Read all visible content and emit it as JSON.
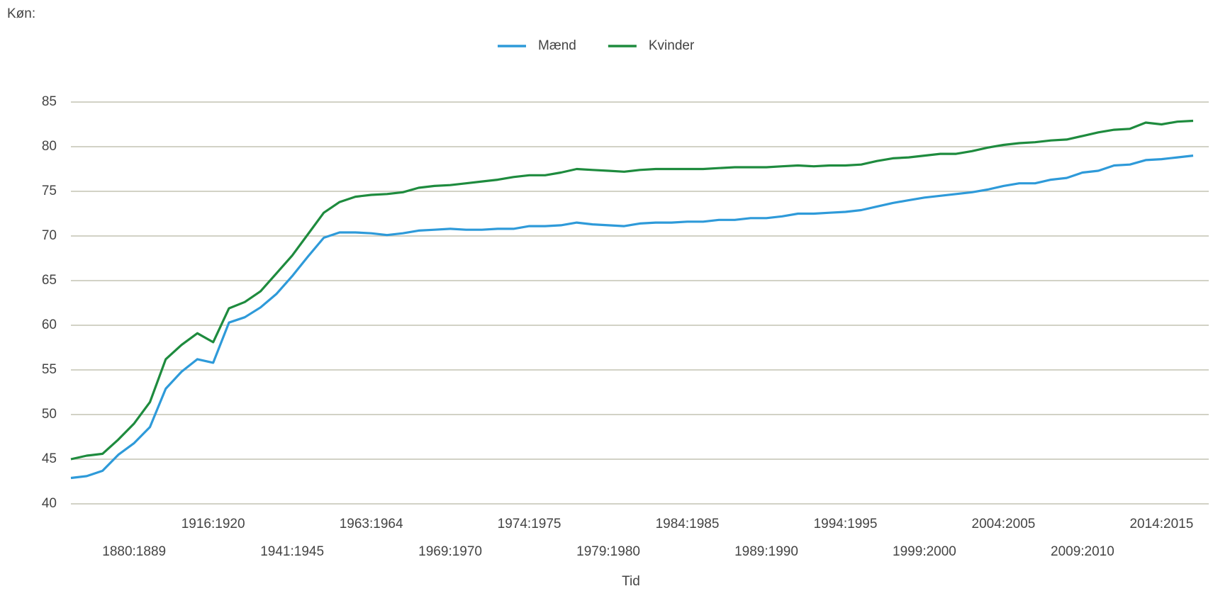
{
  "chart_data": {
    "type": "line",
    "header": "Køn:",
    "x_label": "Tid",
    "categories": [
      null,
      null,
      null,
      null,
      "1880:1889",
      null,
      null,
      null,
      null,
      "1916:1920",
      null,
      null,
      null,
      null,
      "1941:1945",
      null,
      null,
      null,
      null,
      "1963:1964",
      null,
      null,
      null,
      null,
      "1969:1970",
      null,
      null,
      null,
      null,
      "1974:1975",
      null,
      null,
      null,
      null,
      "1979:1980",
      null,
      null,
      null,
      null,
      "1984:1985",
      null,
      null,
      null,
      null,
      "1989:1990",
      null,
      null,
      null,
      null,
      "1994:1995",
      null,
      null,
      null,
      null,
      "1999:2000",
      null,
      null,
      null,
      null,
      "2004:2005",
      null,
      null,
      null,
      null,
      "2009:2010",
      null,
      null,
      null,
      null,
      "2014:2015",
      null,
      null
    ],
    "series": [
      {
        "name": "Mænd",
        "color": "#2e9ad9",
        "values": [
          42.9,
          43.1,
          43.7,
          45.5,
          46.8,
          48.6,
          52.9,
          54.8,
          56.2,
          55.8,
          60.3,
          60.9,
          62.0,
          63.5,
          65.5,
          67.7,
          69.8,
          70.4,
          70.4,
          70.3,
          70.1,
          70.3,
          70.6,
          70.7,
          70.8,
          70.7,
          70.7,
          70.8,
          70.8,
          71.1,
          71.1,
          71.2,
          71.5,
          71.3,
          71.2,
          71.1,
          71.4,
          71.5,
          71.5,
          71.6,
          71.6,
          71.8,
          71.8,
          72.0,
          72.0,
          72.2,
          72.5,
          72.5,
          72.6,
          72.7,
          72.9,
          73.3,
          73.7,
          74.0,
          74.3,
          74.5,
          74.7,
          74.9,
          75.2,
          75.6,
          75.9,
          75.9,
          76.3,
          76.5,
          77.1,
          77.3,
          77.9,
          78.0,
          78.5,
          78.6,
          78.8,
          79.0
        ]
      },
      {
        "name": "Kvinder",
        "color": "#1e8b3e",
        "values": [
          45.0,
          45.4,
          45.6,
          47.2,
          49.0,
          51.4,
          56.2,
          57.8,
          59.1,
          58.1,
          61.9,
          62.6,
          63.8,
          65.8,
          67.8,
          70.2,
          72.6,
          73.8,
          74.4,
          74.6,
          74.7,
          74.9,
          75.4,
          75.6,
          75.7,
          75.9,
          76.1,
          76.3,
          76.6,
          76.8,
          76.8,
          77.1,
          77.5,
          77.4,
          77.3,
          77.2,
          77.4,
          77.5,
          77.5,
          77.5,
          77.5,
          77.6,
          77.7,
          77.7,
          77.7,
          77.8,
          77.9,
          77.8,
          77.9,
          77.9,
          78.0,
          78.4,
          78.7,
          78.8,
          79.0,
          79.2,
          79.2,
          79.5,
          79.9,
          80.2,
          80.4,
          80.5,
          80.7,
          80.8,
          81.2,
          81.6,
          81.9,
          82.0,
          82.7,
          82.5,
          82.8,
          82.9
        ]
      }
    ],
    "ylim": [
      40,
      85
    ],
    "yticks": [
      40,
      45,
      50,
      55,
      60,
      65,
      70,
      75,
      80,
      85
    ],
    "grid": true,
    "legend": "top"
  }
}
